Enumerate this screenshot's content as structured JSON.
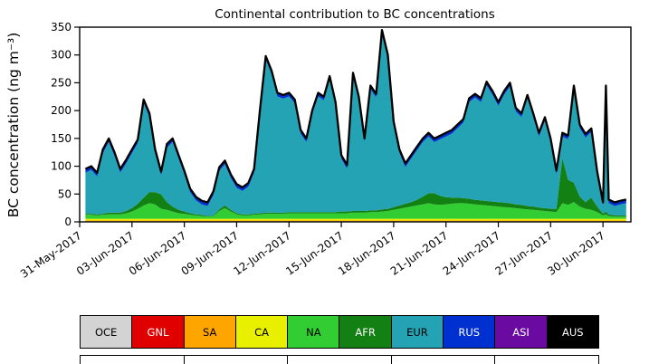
{
  "chart_data": {
    "type": "area",
    "stacked": true,
    "title": "Continental contribution to BC concentrations",
    "ylabel": "BC concentration (ng m⁻³)",
    "xlabel": "",
    "grid": false,
    "legend_position": "bottom",
    "ylim": [
      0,
      350
    ],
    "yticks": [
      0,
      50,
      100,
      150,
      200,
      250,
      300,
      350
    ],
    "x_unit": "days since 31-May-2017",
    "xlim": [
      0,
      31.6
    ],
    "xticks": [
      {
        "day": 0,
        "label": "31-May-2017"
      },
      {
        "day": 3,
        "label": "03-Jun-2017"
      },
      {
        "day": 6,
        "label": "06-Jun-2017"
      },
      {
        "day": 9,
        "label": "09-Jun-2017"
      },
      {
        "day": 12,
        "label": "12-Jun-2017"
      },
      {
        "day": 15,
        "label": "15-Jun-2017"
      },
      {
        "day": 18,
        "label": "18-Jun-2017"
      },
      {
        "day": 21,
        "label": "21-Jun-2017"
      },
      {
        "day": 24,
        "label": "24-Jun-2017"
      },
      {
        "day": 27,
        "label": "27-Jun-2017"
      },
      {
        "day": 30,
        "label": "30-Jun-2017"
      }
    ],
    "line_color": "#000000",
    "x": [
      0.33,
      0.67,
      1,
      1.33,
      1.67,
      2,
      2.33,
      2.67,
      3,
      3.33,
      3.67,
      4,
      4.33,
      4.67,
      5,
      5.33,
      5.67,
      6,
      6.33,
      6.67,
      7,
      7.33,
      7.67,
      8,
      8.33,
      8.67,
      9,
      9.33,
      9.67,
      10,
      10.33,
      10.67,
      11,
      11.33,
      11.67,
      12,
      12.33,
      12.67,
      13,
      13.33,
      13.67,
      14,
      14.33,
      14.67,
      15,
      15.33,
      15.67,
      16,
      16.33,
      16.67,
      17,
      17.33,
      17.67,
      18,
      18.33,
      18.67,
      19,
      19.33,
      19.67,
      20,
      20.33,
      20.67,
      21,
      21.33,
      21.67,
      22,
      22.33,
      22.67,
      23,
      23.33,
      23.67,
      24,
      24.33,
      24.67,
      25,
      25.33,
      25.67,
      26,
      26.33,
      26.67,
      27,
      27.33,
      27.67,
      28,
      28.33,
      28.67,
      29,
      29.33,
      29.67,
      30,
      30.17,
      30.33,
      30.67,
      31,
      31.33
    ],
    "total": [
      95,
      100,
      88,
      130,
      150,
      125,
      95,
      112,
      130,
      148,
      220,
      195,
      130,
      90,
      140,
      150,
      120,
      92,
      60,
      45,
      38,
      35,
      55,
      98,
      110,
      85,
      68,
      62,
      70,
      95,
      200,
      298,
      272,
      232,
      228,
      232,
      220,
      165,
      150,
      200,
      232,
      225,
      262,
      215,
      120,
      102,
      268,
      225,
      150,
      245,
      230,
      345,
      300,
      180,
      130,
      105,
      120,
      135,
      150,
      160,
      150,
      155,
      160,
      165,
      175,
      185,
      222,
      230,
      222,
      252,
      235,
      215,
      235,
      250,
      205,
      195,
      228,
      195,
      160,
      188,
      150,
      92,
      160,
      155,
      245,
      175,
      158,
      168,
      90,
      35,
      245,
      40,
      35,
      38,
      40
    ],
    "series": [
      {
        "name": "OCE",
        "color": "#d3d3d3",
        "values": 1
      },
      {
        "name": "GNL",
        "color": "#e00000",
        "values": 0.5
      },
      {
        "name": "SA",
        "color": "#ffa500",
        "values": 1
      },
      {
        "name": "CA",
        "color": "#e8f000",
        "values": 3
      },
      {
        "name": "NA",
        "color": "#32cd32",
        "values": [
          7,
          7,
          6,
          7,
          8,
          8,
          8,
          10,
          13,
          18,
          24,
          28,
          26,
          18,
          16,
          13,
          10,
          9,
          7,
          6,
          5,
          4,
          5,
          14,
          19,
          13,
          8,
          6,
          6,
          7,
          8,
          9,
          9,
          9,
          9,
          10,
          10,
          10,
          10,
          10,
          10,
          10,
          10,
          10,
          10,
          10,
          11,
          11,
          11,
          12,
          12,
          13,
          14,
          16,
          18,
          20,
          22,
          24,
          26,
          28,
          26,
          25,
          26,
          27,
          28,
          28,
          27,
          26,
          25,
          24,
          23,
          22,
          21,
          20,
          19,
          18,
          17,
          16,
          15,
          14,
          13,
          12,
          28,
          25,
          30,
          22,
          18,
          16,
          12,
          6,
          8,
          5,
          4,
          4,
          4
        ]
      },
      {
        "name": "AFR",
        "color": "#128012",
        "values": [
          2,
          2,
          2,
          2,
          3,
          3,
          3,
          4,
          6,
          9,
          14,
          20,
          22,
          26,
          14,
          9,
          6,
          4,
          3,
          2,
          2,
          1,
          1,
          3,
          5,
          3,
          2,
          2,
          2,
          2,
          2,
          2,
          2,
          2,
          2,
          2,
          2,
          2,
          2,
          2,
          2,
          2,
          2,
          2,
          3,
          3,
          3,
          3,
          3,
          3,
          3,
          4,
          4,
          5,
          6,
          7,
          8,
          10,
          14,
          18,
          20,
          16,
          13,
          11,
          10,
          9,
          9,
          8,
          8,
          8,
          8,
          8,
          8,
          8,
          7,
          7,
          6,
          6,
          5,
          5,
          5,
          6,
          82,
          45,
          35,
          18,
          12,
          22,
          10,
          3,
          5,
          3,
          2,
          2,
          2
        ]
      },
      {
        "name": "EUR",
        "color": "#23a3b3",
        "values": 0,
        "derived": true
      },
      {
        "name": "RUS",
        "color": "#0030d0",
        "values": 5
      },
      {
        "name": "ASI",
        "color": "#6a0aa0",
        "values": 1
      },
      {
        "name": "AUS",
        "color": "#000000",
        "values": 0.5
      }
    ]
  },
  "legend": {
    "items": [
      {
        "label": "OCE",
        "bg": "#d3d3d3",
        "fg": "#000000"
      },
      {
        "label": "GNL",
        "bg": "#e00000",
        "fg": "#ffffff"
      },
      {
        "label": "SA",
        "bg": "#ffa500",
        "fg": "#000000"
      },
      {
        "label": "CA",
        "bg": "#e8f000",
        "fg": "#000000"
      },
      {
        "label": "NA",
        "bg": "#32cd32",
        "fg": "#000000"
      },
      {
        "label": "AFR",
        "bg": "#128012",
        "fg": "#ffffff"
      },
      {
        "label": "EUR",
        "bg": "#23a3b3",
        "fg": "#000000"
      },
      {
        "label": "RUS",
        "bg": "#0030d0",
        "fg": "#ffffff"
      },
      {
        "label": "ASI",
        "bg": "#6a0aa0",
        "fg": "#ffffff"
      },
      {
        "label": "AUS",
        "bg": "#000000",
        "fg": "#ffffff"
      }
    ]
  }
}
